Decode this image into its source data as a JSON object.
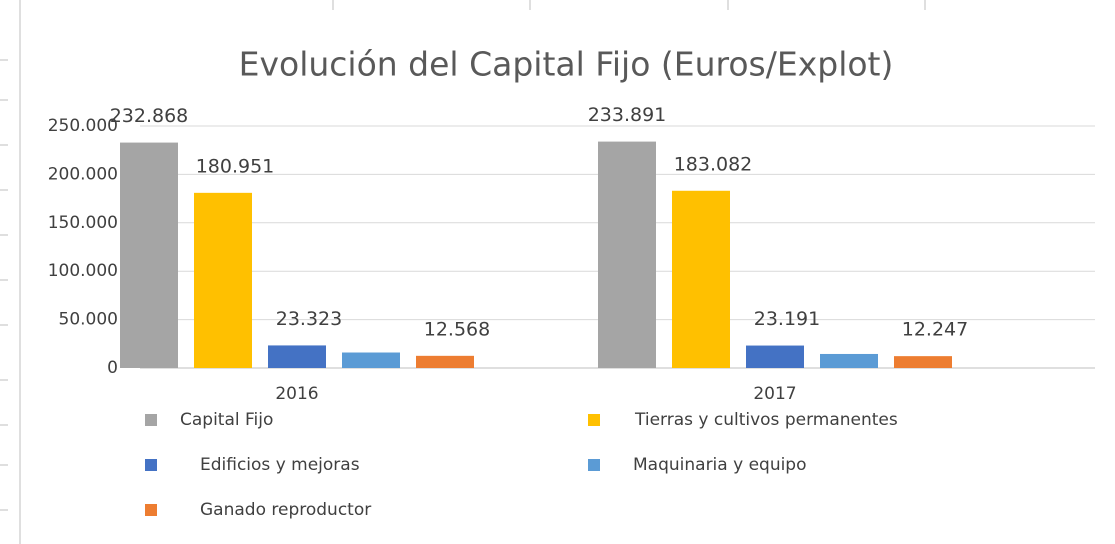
{
  "chart_data": {
    "type": "bar",
    "title": "Evolución del Capital Fijo  (Euros/Explot)",
    "categories": [
      "2016",
      "2017"
    ],
    "series": [
      {
        "name": "Capital Fijo",
        "color": "#a5a5a5",
        "values": [
          232868,
          233891
        ],
        "value_labels": [
          "232.868",
          "233.891"
        ]
      },
      {
        "name": "Tierras y cultivos permanentes",
        "color": "#ffc000",
        "values": [
          180951,
          183082
        ],
        "value_labels": [
          "180.951",
          "183.082"
        ]
      },
      {
        "name": "Edificios y mejoras",
        "color": "#4472c4",
        "values": [
          23323,
          23191
        ],
        "value_labels": [
          "23.323",
          "23.191"
        ]
      },
      {
        "name": "Maquinaria y equipo",
        "color": "#5b9bd5",
        "values": [
          16000,
          14500
        ]
      },
      {
        "name": "Ganado reproductor",
        "color": "#ed7d31",
        "values": [
          12568,
          12247
        ],
        "value_labels": [
          "12.568",
          "12.247"
        ]
      }
    ],
    "ylim": [
      0,
      250000
    ],
    "yticks": [
      0,
      {
        "value": 50000,
        "label": "50.000"
      },
      {
        "value": 100000,
        "label": "100.000"
      },
      {
        "value": 150000,
        "label": "150.000"
      },
      {
        "value": 200000,
        "label": "200.000"
      },
      {
        "value": 250000,
        "label": "250.000"
      }
    ],
    "grid": true
  }
}
